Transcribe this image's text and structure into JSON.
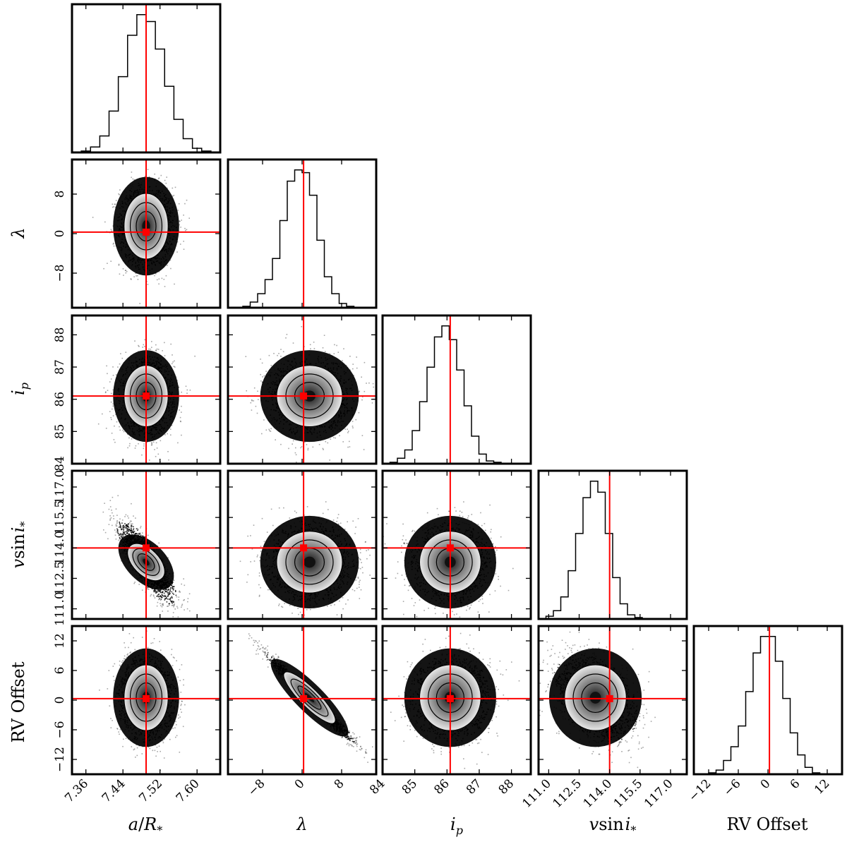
{
  "chart_data": {
    "type": "corner",
    "title": "",
    "parameters": [
      {
        "key": "a_over_rstar",
        "label": "a/R*",
        "range": [
          7.33,
          7.65
        ],
        "ticks": [
          7.36,
          7.44,
          7.52,
          7.6
        ],
        "tick_labels": [
          "7.36",
          "7.44",
          "7.52",
          "7.60"
        ],
        "truth": 7.49,
        "mean": 7.49,
        "sigma": 0.025
      },
      {
        "key": "lambda",
        "label": "λ",
        "range": [
          -15,
          15
        ],
        "ticks": [
          -8,
          0,
          8
        ],
        "tick_labels": [
          "−8",
          "0",
          "8"
        ],
        "truth": 0.3,
        "mean": 1.5,
        "sigma": 3.5
      },
      {
        "key": "i_p",
        "label": "i_p",
        "range": [
          84,
          88.6
        ],
        "ticks": [
          84,
          85,
          86,
          87,
          88
        ],
        "tick_labels": [
          "84",
          "85",
          "86",
          "87",
          "88"
        ],
        "truth": 86.1,
        "mean": 86.1,
        "sigma": 0.5
      },
      {
        "key": "vsini",
        "label": "v sin i*",
        "range": [
          110.5,
          117.8
        ],
        "ticks": [
          111.0,
          112.5,
          114.0,
          115.5,
          117.0
        ],
        "tick_labels": [
          "111.0",
          "112.5",
          "114.0",
          "115.5",
          "117.0"
        ],
        "truth": 114.0,
        "mean": 113.3,
        "sigma": 0.8
      },
      {
        "key": "rv_offset",
        "label": "RV Offset",
        "range": [
          -15,
          15
        ],
        "ticks": [
          -12,
          -6,
          0,
          6,
          12
        ],
        "tick_labels": [
          "−12",
          "−6",
          "0",
          "6",
          "12"
        ],
        "truth": 0.3,
        "mean": 0.5,
        "sigma": 3.5
      }
    ],
    "histograms": [
      {
        "param": "a_over_rstar",
        "bin_edges": [
          7.33,
          7.35,
          7.37,
          7.39,
          7.41,
          7.43,
          7.45,
          7.47,
          7.49,
          7.51,
          7.53,
          7.55,
          7.57,
          7.59,
          7.61,
          7.63,
          7.65
        ],
        "counts": [
          0.0,
          0.01,
          0.04,
          0.12,
          0.3,
          0.55,
          0.85,
          1.0,
          0.95,
          0.75,
          0.48,
          0.24,
          0.1,
          0.03,
          0.01,
          0.0
        ]
      },
      {
        "param": "lambda",
        "bin_edges": [
          -15,
          -13.5,
          -12,
          -10.5,
          -9,
          -7.5,
          -6,
          -4.5,
          -3,
          -1.5,
          0,
          1.5,
          3,
          4.5,
          6,
          7.5,
          9,
          10.5,
          12,
          13.5,
          15
        ],
        "counts": [
          0.0,
          0.0,
          0.01,
          0.04,
          0.1,
          0.2,
          0.35,
          0.62,
          0.9,
          0.98,
          0.96,
          0.8,
          0.48,
          0.22,
          0.1,
          0.03,
          0.01,
          0.0,
          0.0,
          0.0
        ]
      },
      {
        "param": "i_p",
        "bin_edges": [
          84.0,
          84.23,
          84.46,
          84.69,
          84.92,
          85.15,
          85.38,
          85.61,
          85.84,
          86.07,
          86.3,
          86.53,
          86.76,
          86.99,
          87.22,
          87.45,
          87.68,
          87.91,
          88.14,
          88.37,
          88.6
        ],
        "counts": [
          0.0,
          0.01,
          0.04,
          0.1,
          0.24,
          0.45,
          0.7,
          0.92,
          1.0,
          0.9,
          0.68,
          0.42,
          0.2,
          0.07,
          0.02,
          0.01,
          0.0,
          0.0,
          0.0,
          0.0
        ]
      },
      {
        "param": "vsini",
        "bin_edges": [
          110.5,
          110.865,
          111.23,
          111.595,
          111.96,
          112.325,
          112.69,
          113.055,
          113.42,
          113.785,
          114.15,
          114.515,
          114.88,
          115.245,
          115.61,
          115.975,
          116.34,
          116.705,
          117.07,
          117.435,
          117.8
        ],
        "counts": [
          0.0,
          0.02,
          0.06,
          0.16,
          0.35,
          0.62,
          0.88,
          1.0,
          0.92,
          0.62,
          0.3,
          0.11,
          0.03,
          0.01,
          0.0,
          0.0,
          0.0,
          0.0,
          0.0,
          0.0
        ]
      },
      {
        "param": "rv_offset",
        "bin_edges": [
          -15,
          -13.5,
          -12,
          -10.5,
          -9,
          -7.5,
          -6,
          -4.5,
          -3,
          -1.5,
          0,
          1.5,
          3,
          4.5,
          6,
          7.5,
          9,
          10.5,
          12,
          13.5,
          15
        ],
        "counts": [
          0.0,
          0.0,
          0.01,
          0.03,
          0.1,
          0.2,
          0.35,
          0.6,
          0.88,
          1.0,
          1.0,
          0.82,
          0.55,
          0.3,
          0.14,
          0.05,
          0.01,
          0.0,
          0.0,
          0.0
        ]
      }
    ],
    "correlations": {
      "lambda|rv_offset": -0.98,
      "a_over_rstar|vsini": -0.82,
      "vsini|rv_offset": -0.35
    },
    "truth_color": "#ff0000",
    "density_color": "#000000",
    "grid": false,
    "legend": "none"
  },
  "axis_labels": {
    "x": [
      "a/R",
      "λ",
      "i",
      "v",
      "RV Offset"
    ],
    "x_sub": [
      "*",
      "",
      "p",
      "",
      ""
    ],
    "y": [
      "λ",
      "i",
      "v",
      "RV Offset"
    ],
    "vsini_text": {
      "v": "v",
      "sin": "sin",
      "i": "i",
      "star": "*"
    },
    "a_r": {
      "a": "a",
      "slash": "/",
      "R": "R",
      "star": "*"
    },
    "ip": {
      "i": "i",
      "p": "p"
    }
  }
}
